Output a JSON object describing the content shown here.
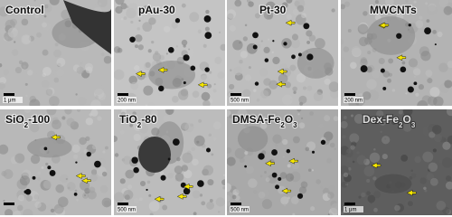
{
  "panels": [
    {
      "label": [
        "Control"
      ],
      "scale_bar": "1 μm"
    },
    {
      "label": [
        "pAu-30"
      ],
      "scale_bar": "200 nm"
    },
    {
      "label": [
        "Pt-30"
      ],
      "scale_bar": "500 nm"
    },
    {
      "label": [
        "MWCNTs"
      ],
      "scale_bar": "200 nm"
    },
    {
      "label": [
        "SiO",
        "2",
        "-100"
      ]
    },
    {
      "label": [
        "TiO",
        "2",
        "-80"
      ],
      "scale_bar": "500 nm"
    },
    {
      "label": [
        "DMSA-Fe",
        "2",
        "O",
        "3"
      ],
      "scale_bar": "500 nm"
    },
    {
      "label": [
        "Dex-Fe",
        "2",
        "O",
        "3"
      ],
      "scale_bar": "1 μm"
    }
  ]
}
